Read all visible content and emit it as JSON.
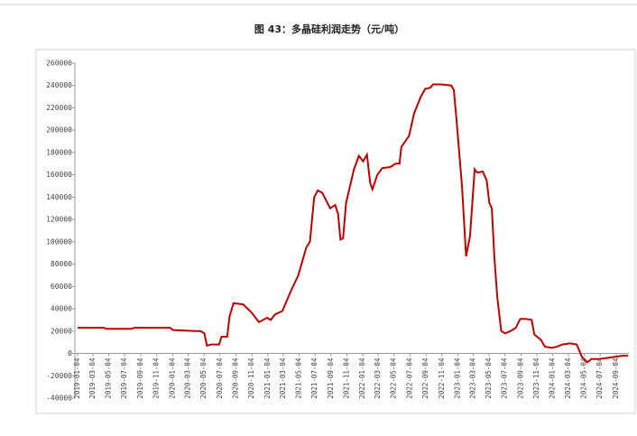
{
  "chart_data": {
    "type": "line",
    "title": "图 43：多晶硅利润走势（元/吨）",
    "x": [
      "2019-01-04",
      "2019-04-15",
      "2019-04-25",
      "2019-08-01",
      "2019-08-10",
      "2019-12-25",
      "2020-01-05",
      "2020-04-01",
      "2020-04-20",
      "2020-05-05",
      "2020-05-15",
      "2020-06-01",
      "2020-07-01",
      "2020-07-10",
      "2020-08-01",
      "2020-08-10",
      "2020-08-25",
      "2020-10-01",
      "2020-11-01",
      "2020-12-01",
      "2021-01-01",
      "2021-01-15",
      "2021-02-01",
      "2021-03-01",
      "2021-04-01",
      "2021-05-01",
      "2021-06-01",
      "2021-06-15",
      "2021-07-01",
      "2021-07-15",
      "2021-08-01",
      "2021-09-01",
      "2021-09-20",
      "2021-10-01",
      "2021-10-10",
      "2021-10-20",
      "2021-11-01",
      "2021-12-01",
      "2021-12-20",
      "2022-01-05",
      "2022-01-20",
      "2022-02-01",
      "2022-02-10",
      "2022-03-01",
      "2022-03-20",
      "2022-04-20",
      "2022-05-10",
      "2022-05-25",
      "2022-06-01",
      "2022-07-01",
      "2022-07-20",
      "2022-08-15",
      "2022-09-01",
      "2022-09-20",
      "2022-10-01",
      "2022-11-01",
      "2022-12-10",
      "2022-12-20",
      "2022-12-30",
      "2023-01-20",
      "2023-02-05",
      "2023-02-20",
      "2023-03-10",
      "2023-03-20",
      "2023-04-10",
      "2023-04-25",
      "2023-05-05",
      "2023-05-15",
      "2023-05-25",
      "2023-06-05",
      "2023-06-20",
      "2023-07-05",
      "2023-07-25",
      "2023-08-15",
      "2023-09-01",
      "2023-09-20",
      "2023-10-15",
      "2023-10-25",
      "2023-11-20",
      "2023-12-05",
      "2024-01-01",
      "2024-01-20",
      "2024-02-10",
      "2024-03-10",
      "2024-04-05",
      "2024-04-25",
      "2024-05-15",
      "2024-06-01",
      "2024-07-01",
      "2024-08-01",
      "2024-09-01",
      "2024-09-30",
      "2024-10-20"
    ],
    "series": [
      {
        "color": "#c00000",
        "values": [
          23000,
          23000,
          22000,
          22000,
          23000,
          23000,
          21000,
          20000,
          20000,
          18000,
          7000,
          8000,
          8000,
          15000,
          15000,
          33000,
          45000,
          44000,
          37000,
          28000,
          32000,
          30000,
          35000,
          38000,
          55000,
          70000,
          95000,
          100000,
          140000,
          146000,
          144000,
          130000,
          133000,
          125000,
          102000,
          103000,
          135000,
          165000,
          177000,
          172000,
          178000,
          153000,
          147000,
          160000,
          166000,
          167000,
          170000,
          170000,
          185000,
          195000,
          215000,
          230000,
          237000,
          238000,
          241000,
          241000,
          240000,
          236000,
          210000,
          150000,
          87000,
          105000,
          165000,
          162000,
          163000,
          155000,
          135000,
          130000,
          85000,
          50000,
          20000,
          18000,
          20000,
          23000,
          31000,
          31000,
          30000,
          17000,
          12000,
          6000,
          5000,
          6000,
          8000,
          9000,
          8000,
          -3000,
          -8000,
          -5000,
          -5000,
          -4000,
          -3000,
          -2000,
          -2000
        ]
      }
    ],
    "ylim": [
      -40000,
      260000
    ],
    "yticks": [
      -40000,
      -20000,
      0,
      20000,
      40000,
      60000,
      80000,
      100000,
      120000,
      140000,
      160000,
      180000,
      200000,
      220000,
      240000,
      260000
    ],
    "xticks": [
      "2019-01-04",
      "2019-03-04",
      "2019-05-04",
      "2019-07-04",
      "2019-09-04",
      "2019-11-04",
      "2020-01-04",
      "2020-03-04",
      "2020-05-04",
      "2020-07-04",
      "2020-09-04",
      "2020-11-04",
      "2021-01-04",
      "2021-03-04",
      "2021-05-04",
      "2021-07-04",
      "2021-09-04",
      "2021-11-04",
      "2022-01-04",
      "2022-03-04",
      "2022-05-04",
      "2022-07-04",
      "2022-09-04",
      "2022-11-04",
      "2023-01-04",
      "2023-03-04",
      "2023-05-04",
      "2023-07-04",
      "2023-09-04",
      "2023-11-04",
      "2024-01-04",
      "2024-03-04",
      "2024-05-04",
      "2024-07-04",
      "2024-09-04"
    ]
  }
}
